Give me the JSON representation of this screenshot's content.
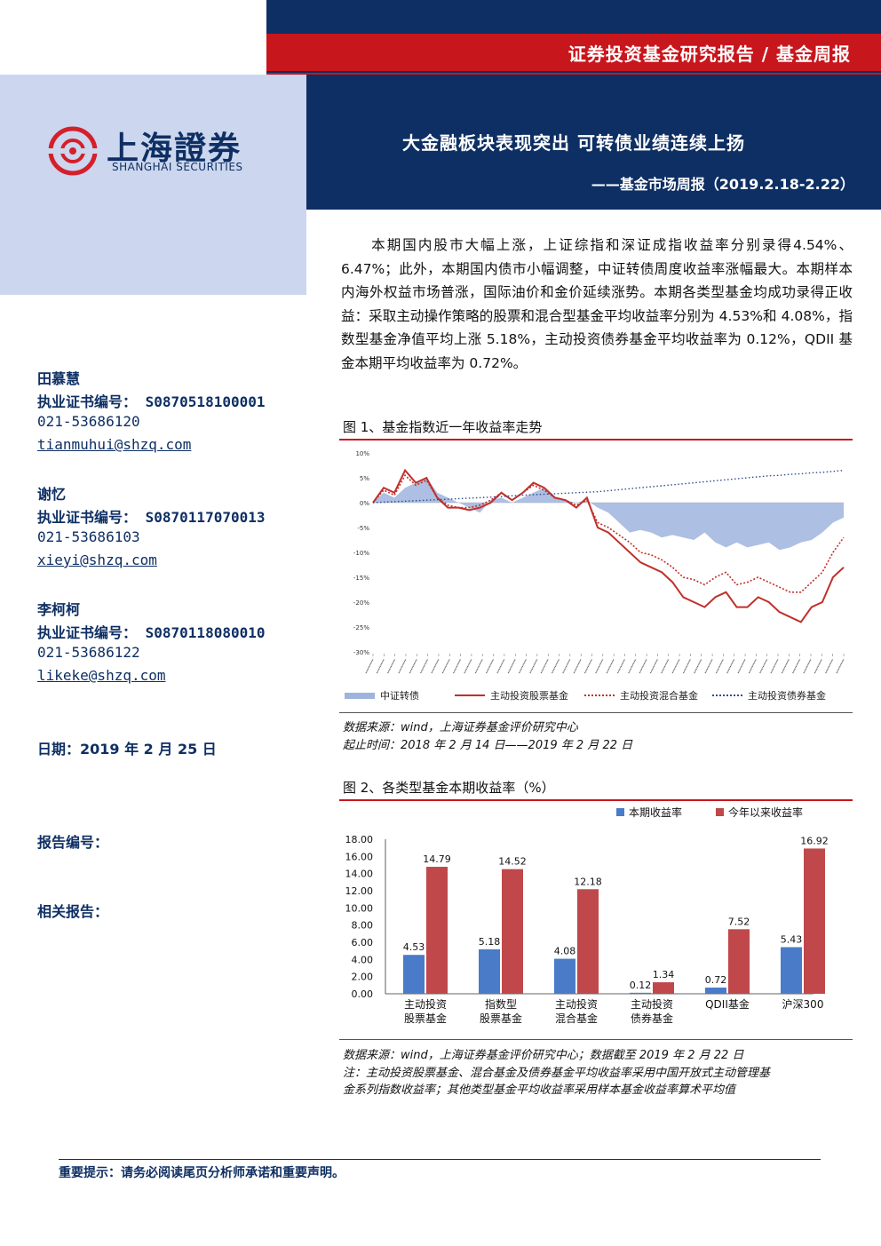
{
  "header": {
    "series": "证券投资基金研究报告 / 基金周报",
    "title": "大金融板块表现突出 可转债业绩连续上扬",
    "subtitle": "——基金市场周报（2019.2.18-2.22）"
  },
  "logo": {
    "cn": "上海證券",
    "en": "SHANGHAI SECURITIES"
  },
  "summary": "本期国内股市大幅上涨，上证综指和深证成指收益率分别录得4.54%、6.47%；此外，本期国内债市小幅调整，中证转债周度收益率涨幅最大。本期样本内海外权益市场普涨，国际油价和金价延续涨势。本期各类型基金均成功录得正收益：采取主动操作策略的股票和混合型基金平均收益率分别为 4.53%和 4.08%，指数型基金净值平均上涨 5.18%，主动投资债券基金平均收益率为 0.12%，QDII 基金本期平均收益率为 0.72%。",
  "authors": [
    {
      "name": "田慕慧",
      "cert": "执业证书编号： S0870518100001",
      "phone": "021-53686120",
      "email": "tianmuhui@shzq.com"
    },
    {
      "name": "谢忆",
      "cert": "执业证书编号： S0870117070013",
      "phone": "021-53686103",
      "email": "xieyi@shzq.com"
    },
    {
      "name": "李柯柯",
      "cert": "执业证书编号： S0870118080010",
      "phone": "021-53686122",
      "email": "likeke@shzq.com"
    }
  ],
  "meta": {
    "date": "日期：2019 年 2 月 25 日",
    "report_no": "报告编号：",
    "related": "相关报告："
  },
  "figure1": {
    "caption": "图 1、基金指数近一年收益率走势",
    "source1": "数据来源：wind，上海证券基金评价研究中心",
    "source2": "起止时间：2018 年 2 月 14 日——2019 年 2 月 22 日"
  },
  "figure2": {
    "caption": "图 2、各类型基金本期收益率（%）",
    "source1": "数据来源：wind，上海证券基金评价研究中心；数据截至 2019 年 2 月 22 日",
    "source2": "注：主动投资股票基金、混合基金及债券基金平均收益率采用中国开放式主动管理基",
    "source3": "金系列指数收益率；其他类型基金平均收益率采用样本基金收益率算术平均值"
  },
  "footer": "重要提示：请务必阅读尾页分析师承诺和重要声明。",
  "chart_data": [
    {
      "type": "line",
      "yticks": [
        "10%",
        "5%",
        "0%",
        "-5%",
        "-10%",
        "-15%",
        "-20%",
        "-25%",
        "-30%"
      ],
      "ylim": [
        -30,
        10
      ],
      "colors": {
        "csi_convertible": "#9fb4dd",
        "equity": "#c0302b",
        "mixed": "#c0302b",
        "bond": "#2f4d8f"
      },
      "series": [
        {
          "name": "中证转债",
          "style": "area",
          "values": [
            0.0,
            2.0,
            1.0,
            3.0,
            4.0,
            5.0,
            2.0,
            1.0,
            0.0,
            -1.0,
            -2.0,
            0.5,
            1.0,
            0.0,
            1.0,
            2.0,
            3.0,
            1.0,
            0.5,
            0.0,
            0.5,
            -1.0,
            -2.0,
            -4.0,
            -6.0,
            -5.5,
            -6.0,
            -7.0,
            -6.5,
            -7.0,
            -7.5,
            -6.0,
            -8.0,
            -9.0,
            -8.0,
            -9.0,
            -8.5,
            -8.0,
            -9.5,
            -9.0,
            -8.0,
            -7.5,
            -6.0,
            -4.0,
            -3.0
          ]
        },
        {
          "name": "主动投资股票基金",
          "style": "solid",
          "values": [
            0.0,
            3.0,
            2.0,
            6.5,
            4.0,
            5.0,
            1.0,
            -1.0,
            -1.0,
            -1.5,
            -1.0,
            0.0,
            2.0,
            0.5,
            2.0,
            4.0,
            3.0,
            1.0,
            0.5,
            -1.0,
            1.0,
            -5.0,
            -6.0,
            -8.0,
            -10.0,
            -12.0,
            -13.0,
            -14.0,
            -16.0,
            -19.0,
            -20.0,
            -21.0,
            -19.0,
            -18.0,
            -21.0,
            -21.0,
            -19.0,
            -20.0,
            -22.0,
            -23.0,
            -24.0,
            -21.0,
            -20.0,
            -15.0,
            -13.0
          ]
        },
        {
          "name": "主动投资混合基金",
          "style": "dotted",
          "values": [
            0.0,
            2.5,
            1.5,
            5.5,
            3.5,
            4.5,
            1.0,
            -0.5,
            -1.0,
            -1.0,
            -0.5,
            0.5,
            2.0,
            0.5,
            2.0,
            3.5,
            2.5,
            1.0,
            0.5,
            -0.5,
            0.5,
            -4.0,
            -5.0,
            -6.5,
            -8.0,
            -10.0,
            -10.5,
            -11.5,
            -13.0,
            -15.0,
            -15.5,
            -16.5,
            -15.0,
            -14.0,
            -16.5,
            -16.0,
            -15.0,
            -16.0,
            -17.0,
            -18.0,
            -18.0,
            -16.0,
            -14.0,
            -10.0,
            -7.0
          ]
        },
        {
          "name": "主动投资债券基金",
          "style": "dotted",
          "values": [
            0.0,
            0.1,
            0.2,
            0.3,
            0.4,
            0.5,
            0.6,
            0.7,
            0.8,
            0.9,
            1.0,
            1.1,
            1.2,
            1.4,
            1.5,
            1.6,
            1.7,
            1.8,
            1.9,
            2.0,
            2.1,
            2.2,
            2.4,
            2.6,
            2.8,
            3.0,
            3.2,
            3.4,
            3.6,
            3.8,
            4.0,
            4.2,
            4.4,
            4.6,
            4.8,
            5.0,
            5.2,
            5.4,
            5.5,
            5.7,
            5.8,
            6.0,
            6.1,
            6.3,
            6.5
          ]
        }
      ]
    },
    {
      "type": "bar",
      "categories": [
        [
          "主动投资",
          "股票基金"
        ],
        [
          "指数型",
          "股票基金"
        ],
        [
          "主动投资",
          "混合基金"
        ],
        [
          "主动投资",
          "债券基金"
        ],
        [
          "QDII基金"
        ],
        [
          "沪深300"
        ]
      ],
      "ylim": [
        0,
        18
      ],
      "yticks": [
        "0.00",
        "2.00",
        "4.00",
        "6.00",
        "8.00",
        "10.00",
        "12.00",
        "14.00",
        "16.00",
        "18.00"
      ],
      "colors": {
        "current": "#4a7bc8",
        "ytd": "#c0484a"
      },
      "series": [
        {
          "name": "本期收益率",
          "values": [
            4.53,
            5.18,
            4.08,
            0.12,
            0.72,
            5.43
          ],
          "labels": [
            "4.53",
            "5.18",
            "4.08",
            "0.12",
            "0.72",
            "5.43"
          ]
        },
        {
          "name": "今年以来收益率",
          "values": [
            14.79,
            14.52,
            12.18,
            1.34,
            7.52,
            16.92
          ],
          "labels": [
            "14.79",
            "14.52",
            "12.18",
            "1.34",
            "7.52",
            "16.92"
          ]
        }
      ]
    }
  ]
}
